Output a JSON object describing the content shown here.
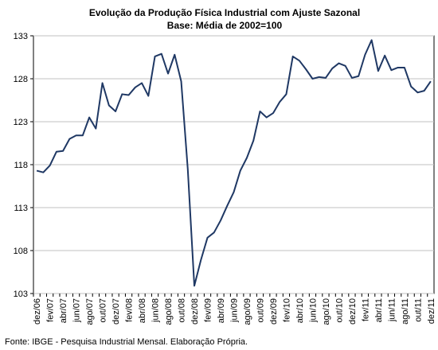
{
  "chart_data": {
    "type": "line",
    "title": "Evolução da Produção Física Industrial com Ajuste Sazonal",
    "subtitle": "Base: Média de 2002=100",
    "source": "Fonte: IBGE - Pesquisa Industrial Mensal. Elaboração Própria.",
    "categories": [
      "dez/06",
      null,
      "fev/07",
      null,
      "abr/07",
      null,
      "jun/07",
      null,
      "ago/07",
      null,
      "out/07",
      null,
      "dez/07",
      null,
      "fev/08",
      null,
      "abr/08",
      null,
      "jun/08",
      null,
      "ago/08",
      null,
      "out/08",
      null,
      "dez/08",
      null,
      "fev/09",
      null,
      "abr/09",
      null,
      "jun/09",
      null,
      "ago/09",
      null,
      "out/09",
      null,
      "dez/09",
      null,
      "fev/10",
      null,
      "abr/10",
      null,
      "jun/10",
      null,
      "ago/10",
      null,
      "out/10",
      null,
      "dez/10",
      null,
      "fev/11",
      null,
      "abr/11",
      null,
      "jun/11",
      null,
      "ago/11",
      null,
      "out/11",
      null,
      "dez/11"
    ],
    "values": [
      117.3,
      117.1,
      117.9,
      119.5,
      119.6,
      121.0,
      121.4,
      121.4,
      123.5,
      122.2,
      127.5,
      124.9,
      124.2,
      126.2,
      126.1,
      127.0,
      127.5,
      126.0,
      130.6,
      130.9,
      128.6,
      130.8,
      127.7,
      117.5,
      103.9,
      106.9,
      109.5,
      110.1,
      111.5,
      113.2,
      114.8,
      117.3,
      118.8,
      120.8,
      124.2,
      123.5,
      124.0,
      125.3,
      126.2,
      130.6,
      130.1,
      129.1,
      128.0,
      128.2,
      128.1,
      129.2,
      129.8,
      129.5,
      128.1,
      128.3,
      130.8,
      132.5,
      128.9,
      130.7,
      129.0,
      129.3,
      129.3,
      127.1,
      126.4,
      126.6,
      127.7
    ],
    "color": "#1f3864",
    "ylim": [
      103,
      133
    ],
    "yticks": [
      103,
      108,
      113,
      118,
      123,
      128,
      133
    ],
    "grid": true
  }
}
